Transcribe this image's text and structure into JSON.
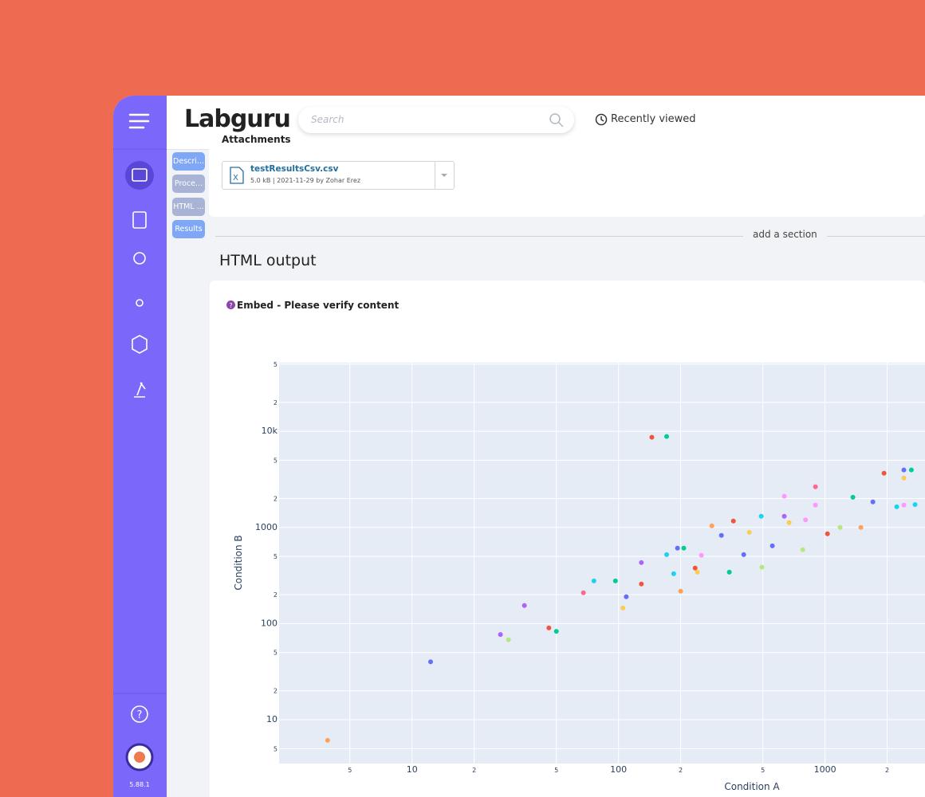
{
  "header": {
    "logo": "Labguru",
    "search_placeholder": "Search",
    "recently_viewed": "Recently viewed"
  },
  "sidebar": {
    "version": "5.88.1"
  },
  "tabs": [
    "Descri...",
    "Proce...",
    "HTML ...",
    "Results"
  ],
  "attachments": {
    "title": "Attachments",
    "file_name": "testResultsCsv.csv",
    "file_meta": "5.0 kB | 2021-11-29 by Zohar Erez"
  },
  "add_section": "add a section",
  "section_title": "HTML output",
  "embed": {
    "title": "Embed - Please verify content",
    "plot": {
      "type": "scatter",
      "x_label": "Condition A",
      "y_label": "Condition B",
      "log_x": true,
      "log_y": true,
      "grid": true,
      "xlim": [
        2.27,
        10500
      ],
      "ylim": [
        3.5,
        51800
      ],
      "xticks": [
        5,
        10,
        {
          "value": 20,
          "label": "2"
        },
        {
          "value": 50,
          "label": "5"
        },
        100,
        {
          "value": 200,
          "label": "2"
        },
        {
          "value": 500,
          "label": "5"
        },
        1000,
        {
          "value": 2000,
          "label": "2"
        }
      ],
      "yticks": [
        5,
        10,
        {
          "value": 20,
          "label": "2"
        },
        {
          "value": 50,
          "label": "5"
        },
        100,
        {
          "value": 200,
          "label": "2"
        },
        {
          "value": 500,
          "label": "5"
        },
        1000,
        {
          "value": 2000,
          "label": "2"
        },
        {
          "value": 5000,
          "label": "5"
        },
        {
          "value": 10000,
          "label": "10k"
        },
        {
          "value": 20000,
          "label": "2"
        },
        {
          "value": 50000,
          "label": "5"
        }
      ],
      "points": [
        {
          "x": 3.9,
          "y": 6.1,
          "color": "#FFA15A"
        },
        {
          "x": 12.3,
          "y": 40,
          "color": "#636efa"
        },
        {
          "x": 26.8,
          "y": 77,
          "color": "#ab63fa"
        },
        {
          "x": 29.3,
          "y": 68,
          "color": "#B6E880"
        },
        {
          "x": 35,
          "y": 154,
          "color": "#ab63fa"
        },
        {
          "x": 46,
          "y": 90,
          "color": "#EF553B"
        },
        {
          "x": 50,
          "y": 83,
          "color": "#00cc96"
        },
        {
          "x": 67.6,
          "y": 209,
          "color": "#FF6692"
        },
        {
          "x": 76,
          "y": 278,
          "color": "#19d3f3"
        },
        {
          "x": 96.6,
          "y": 278,
          "color": "#00cc96"
        },
        {
          "x": 109,
          "y": 190,
          "color": "#636efa"
        },
        {
          "x": 105,
          "y": 145,
          "color": "#FECB52"
        },
        {
          "x": 129,
          "y": 258,
          "color": "#EF553B"
        },
        {
          "x": 129,
          "y": 431,
          "color": "#ab63fa"
        },
        {
          "x": 145,
          "y": 8670,
          "color": "#EF553B"
        },
        {
          "x": 171,
          "y": 8840,
          "color": "#00cc96"
        },
        {
          "x": 171,
          "y": 522,
          "color": "#19d3f3"
        },
        {
          "x": 193,
          "y": 609,
          "color": "#636efa"
        },
        {
          "x": 207,
          "y": 609,
          "color": "#00cc96"
        },
        {
          "x": 200,
          "y": 217,
          "color": "#FFA15A"
        },
        {
          "x": 235,
          "y": 378,
          "color": "#EF553B"
        },
        {
          "x": 283,
          "y": 1040,
          "color": "#FFA15A"
        },
        {
          "x": 315,
          "y": 826,
          "color": "#636efa"
        },
        {
          "x": 360,
          "y": 1165,
          "color": "#EF553B"
        },
        {
          "x": 404,
          "y": 522,
          "color": "#636efa"
        },
        {
          "x": 491,
          "y": 1306,
          "color": "#19d3f3"
        },
        {
          "x": 556,
          "y": 644,
          "color": "#636efa"
        },
        {
          "x": 635,
          "y": 1306,
          "color": "#ab63fa"
        },
        {
          "x": 635,
          "y": 2110,
          "color": "#FF97FF"
        },
        {
          "x": 780,
          "y": 586,
          "color": "#B6E880"
        },
        {
          "x": 899,
          "y": 2648,
          "color": "#FF6692"
        },
        {
          "x": 899,
          "y": 1708,
          "color": "#FF97FF"
        },
        {
          "x": 1028,
          "y": 859,
          "color": "#EF553B"
        },
        {
          "x": 1184,
          "y": 1000,
          "color": "#B6E880"
        },
        {
          "x": 1365,
          "y": 2064,
          "color": "#00cc96"
        },
        {
          "x": 1492,
          "y": 1000,
          "color": "#FFA15A"
        },
        {
          "x": 1706,
          "y": 1845,
          "color": "#636efa"
        },
        {
          "x": 1932,
          "y": 3665,
          "color": "#EF553B"
        },
        {
          "x": 2226,
          "y": 1640,
          "color": "#19d3f3"
        },
        {
          "x": 2410,
          "y": 3960,
          "color": "#636efa"
        },
        {
          "x": 2410,
          "y": 3270,
          "color": "#FECB52"
        },
        {
          "x": 2620,
          "y": 3960,
          "color": "#00cc96"
        },
        {
          "x": 2730,
          "y": 1730,
          "color": "#19d3f3"
        },
        {
          "x": 2410,
          "y": 1708,
          "color": "#FF97FF"
        },
        {
          "x": 430,
          "y": 890,
          "color": "#FECB52"
        },
        {
          "x": 344,
          "y": 343,
          "color": "#00cc96"
        },
        {
          "x": 252,
          "y": 513,
          "color": "#FF97FF"
        },
        {
          "x": 241,
          "y": 343,
          "color": "#FECB52"
        },
        {
          "x": 185,
          "y": 330,
          "color": "#19d3f3"
        },
        {
          "x": 495,
          "y": 386,
          "color": "#B6E880"
        },
        {
          "x": 670,
          "y": 1122,
          "color": "#FECB52"
        },
        {
          "x": 805,
          "y": 1200,
          "color": "#FF97FF"
        }
      ]
    }
  }
}
